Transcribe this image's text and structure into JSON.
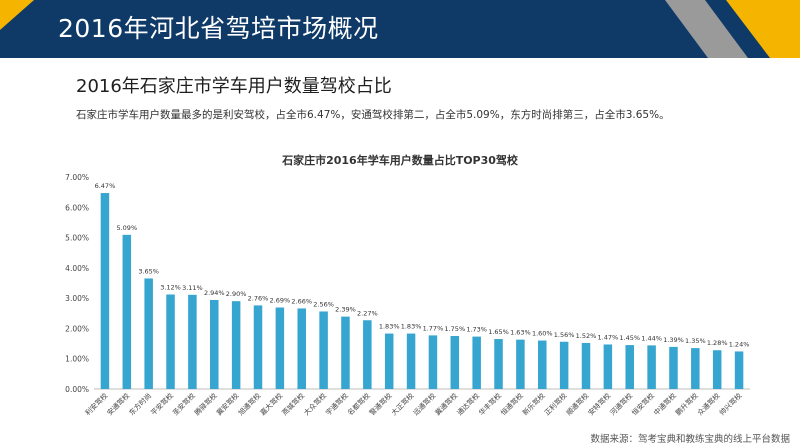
{
  "header": {
    "title": "2016年河北省驾培市场概况",
    "bg_color": "#0f3a68",
    "accent_yellow": "#f5b400",
    "accent_gray": "#9a9a9a"
  },
  "subtitle": "2016年石家庄市学车用户数量驾校占比",
  "summary": "石家庄市学车用户数量最多的是利安驾校，占全市6.47%，安通驾校排第二，占全市5.09%，东方时尚排第三，占全市3.65%。",
  "source": "数据来源：驾考宝典和教练宝典的线上平台数据",
  "chart_data": {
    "type": "bar",
    "title": "石家庄市2016年学车用户数量占比TOP30驾校",
    "xlabel": "",
    "ylabel": "",
    "ylim": [
      0,
      7
    ],
    "yticks": [
      "0.00%",
      "1.00%",
      "2.00%",
      "3.00%",
      "4.00%",
      "5.00%",
      "6.00%",
      "7.00%"
    ],
    "bar_color": "#36a5cf",
    "categories": [
      "利安驾校",
      "安通驾校",
      "东方时尚",
      "平安驾校",
      "圣安驾校",
      "腾驿驾校",
      "冀安驾校",
      "旭通驾校",
      "嘉大驾校",
      "燕城驾校",
      "大众驾校",
      "宇通驾校",
      "名都驾校",
      "警通驾校",
      "大正驾校",
      "远通驾校",
      "冀通驾校",
      "通达驾校",
      "华丰驾校",
      "恒通驾校",
      "新乐驾校",
      "正利驾校",
      "顺通驾校",
      "安特驾校",
      "河通驾校",
      "恒安驾校",
      "中通驾校",
      "鹏升驾校",
      "众通驾校",
      "帅兴驾校"
    ],
    "values": [
      6.47,
      5.09,
      3.65,
      3.12,
      3.11,
      2.94,
      2.9,
      2.76,
      2.69,
      2.66,
      2.56,
      2.39,
      2.27,
      1.83,
      1.83,
      1.77,
      1.75,
      1.73,
      1.65,
      1.63,
      1.6,
      1.56,
      1.52,
      1.47,
      1.45,
      1.44,
      1.39,
      1.35,
      1.28,
      1.24
    ],
    "data_labels": [
      "6.47%",
      "5.09%",
      "3.65%",
      "3.12%",
      "3.11%",
      "2.94%",
      "2.90%",
      "2.76%",
      "2.69%",
      "2.66%",
      "2.56%",
      "2.39%",
      "2.27%",
      "1.83%",
      "1.83%",
      "1.77%",
      "1.75%",
      "1.73%",
      "1.65%",
      "1.63%",
      "1.60%",
      "1.56%",
      "1.52%",
      "1.47%",
      "1.45%",
      "1.44%",
      "1.39%",
      "1.35%",
      "1.28%",
      "1.24%"
    ],
    "grid": false,
    "legend": "none"
  }
}
